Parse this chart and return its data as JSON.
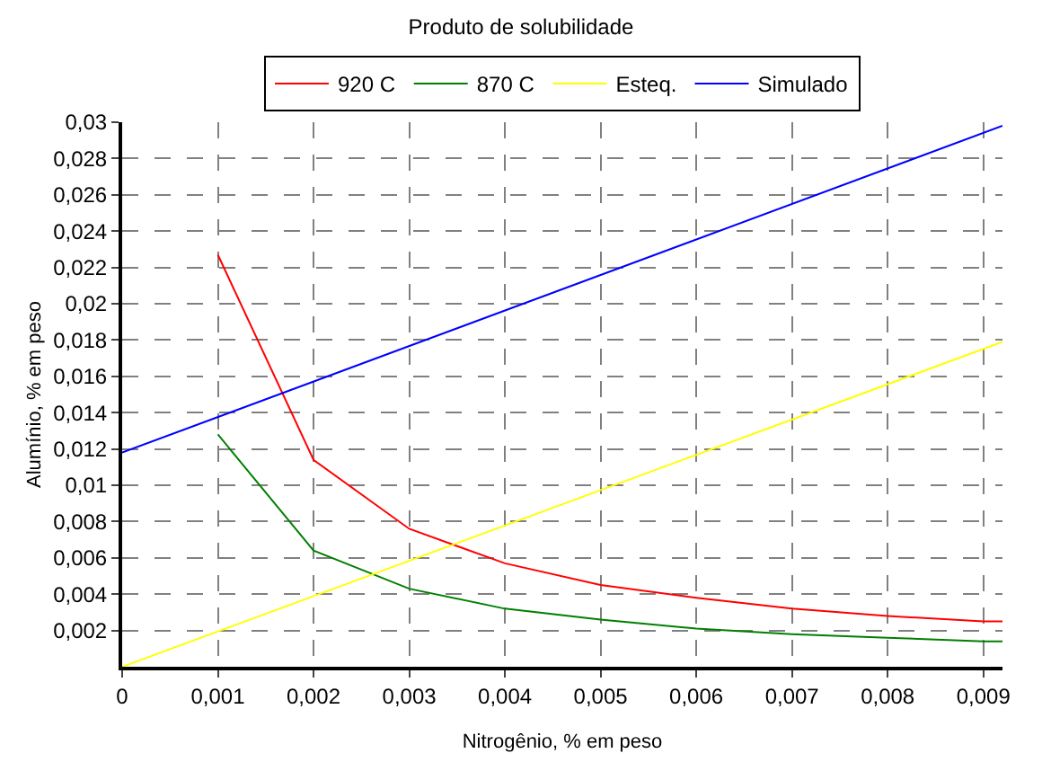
{
  "chart_data": {
    "type": "line",
    "title": "Produto de solubilidade",
    "xlabel": "Nitrogênio, % em peso",
    "ylabel": "Alumínio, % em peso",
    "xlim": [
      0,
      0.0092
    ],
    "ylim": [
      0,
      0.03
    ],
    "xticks": [
      {
        "value": 0,
        "label": "0"
      },
      {
        "value": 0.001,
        "label": "0,001"
      },
      {
        "value": 0.002,
        "label": "0,002"
      },
      {
        "value": 0.003,
        "label": "0,003"
      },
      {
        "value": 0.004,
        "label": "0,004"
      },
      {
        "value": 0.005,
        "label": "0,005"
      },
      {
        "value": 0.006,
        "label": "0,006"
      },
      {
        "value": 0.007,
        "label": "0,007"
      },
      {
        "value": 0.008,
        "label": "0,008"
      },
      {
        "value": 0.009,
        "label": "0,009"
      }
    ],
    "yticks": [
      {
        "value": 0.002,
        "label": "0,002"
      },
      {
        "value": 0.004,
        "label": "0,004"
      },
      {
        "value": 0.006,
        "label": "0,006"
      },
      {
        "value": 0.008,
        "label": "0,008"
      },
      {
        "value": 0.01,
        "label": "0,01"
      },
      {
        "value": 0.012,
        "label": "0,012"
      },
      {
        "value": 0.014,
        "label": "0,014"
      },
      {
        "value": 0.016,
        "label": "0,016"
      },
      {
        "value": 0.018,
        "label": "0,018"
      },
      {
        "value": 0.02,
        "label": "0,02"
      },
      {
        "value": 0.022,
        "label": "0,022"
      },
      {
        "value": 0.024,
        "label": "0,024"
      },
      {
        "value": 0.026,
        "label": "0,026"
      },
      {
        "value": 0.028,
        "label": "0,028"
      },
      {
        "value": 0.03,
        "label": "0,03"
      }
    ],
    "grid": true,
    "legend": "top",
    "line_style": "solid",
    "marker": "none",
    "series": [
      {
        "name": "920 C",
        "color": "#ff0000",
        "x": [
          0.001,
          0.002,
          0.003,
          0.004,
          0.005,
          0.006,
          0.007,
          0.008,
          0.009,
          0.0092
        ],
        "values": [
          0.0227,
          0.0114,
          0.0076,
          0.0057,
          0.0045,
          0.0038,
          0.0032,
          0.0028,
          0.0025,
          0.0025
        ]
      },
      {
        "name": "870 C",
        "color": "#008000",
        "x": [
          0.001,
          0.002,
          0.003,
          0.004,
          0.005,
          0.006,
          0.007,
          0.008,
          0.009,
          0.0092
        ],
        "values": [
          0.0128,
          0.0064,
          0.0043,
          0.0032,
          0.0026,
          0.0021,
          0.0018,
          0.0016,
          0.0014,
          0.0014
        ]
      },
      {
        "name": "Esteq.",
        "color": "#ffff00",
        "x": [
          0,
          0.0092
        ],
        "values": [
          0,
          0.0179
        ]
      },
      {
        "name": "Simulado",
        "color": "#0000ff",
        "x": [
          0,
          0.0092
        ],
        "values": [
          0.0118,
          0.0298
        ]
      }
    ]
  }
}
